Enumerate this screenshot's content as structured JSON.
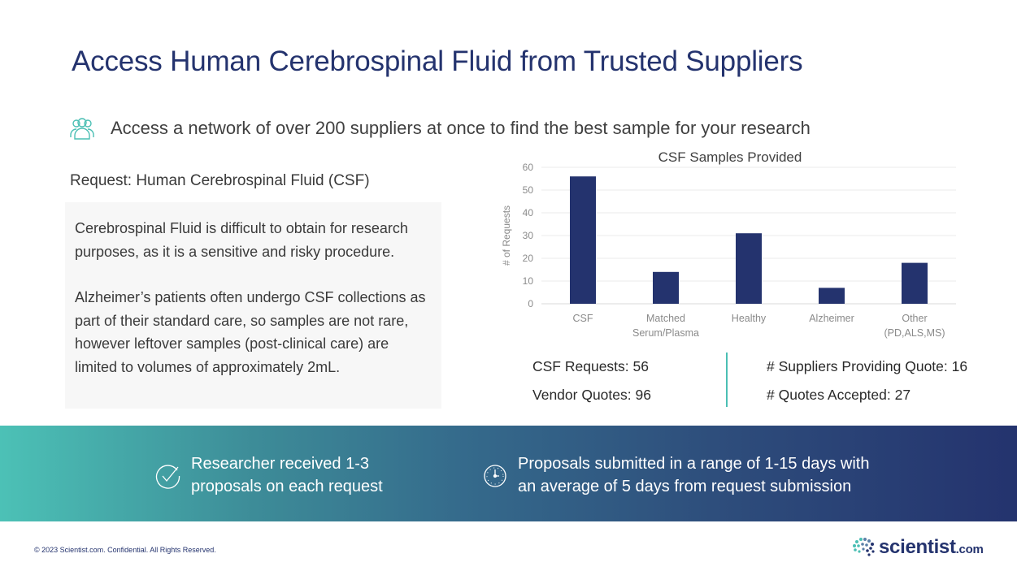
{
  "title": "Access Human Cerebrospinal Fluid from Trusted Suppliers",
  "subtitle": {
    "icon": "people-group-icon",
    "text": "Access a network of over 200 suppliers at once to find the best sample for your research"
  },
  "request_label": "Request: Human Cerebrospinal Fluid (CSF)",
  "description": {
    "paragraphs": [
      "Cerebrospinal Fluid is difficult to obtain for research purposes, as it is a sensitive and risky procedure.",
      "Alzheimer’s patients often undergo CSF collections as part of their standard care, so samples are not rare, however leftover samples (post-clinical care) are limited to volumes of approximately 2mL."
    ]
  },
  "chart_data": {
    "type": "bar",
    "title": "CSF Samples Provided",
    "xlabel": "",
    "ylabel": "# of Requests",
    "categories": [
      [
        "CSF"
      ],
      [
        "Matched",
        "Serum/Plasma"
      ],
      [
        "Healthy"
      ],
      [
        "Alzheimer"
      ],
      [
        "Other",
        "(PD,ALS,MS)"
      ]
    ],
    "values": [
      56,
      14,
      31,
      7,
      18
    ],
    "ylim": [
      0,
      60
    ],
    "yticks": [
      0,
      10,
      20,
      30,
      40,
      50,
      60
    ],
    "grid": true,
    "legend": "none",
    "bar_color": "#24336e"
  },
  "stats": {
    "left": [
      {
        "label": "CSF Requests:",
        "value": "56"
      },
      {
        "label": "Vendor Quotes:",
        "value": "96"
      }
    ],
    "right": [
      {
        "label": "# Suppliers Providing Quote:",
        "value": "16"
      },
      {
        "label": "# Quotes Accepted:",
        "value": "27"
      }
    ]
  },
  "banner": {
    "items": [
      {
        "icon": "check-circle-icon",
        "lines": [
          "Researcher received 1-3",
          "proposals on each request"
        ]
      },
      {
        "icon": "clock-icon",
        "lines": [
          "Proposals submitted in a range of 1-15 days with",
          "an average of 5 days from request submission"
        ]
      }
    ]
  },
  "footer": {
    "copyright": "© 2023 Scientist.com. Confidential. All Rights Reserved.",
    "logo_word": "scientist",
    "logo_suffix": ".com"
  },
  "colors": {
    "brand_navy": "#24336e",
    "accent_teal": "#4bbfb4"
  }
}
